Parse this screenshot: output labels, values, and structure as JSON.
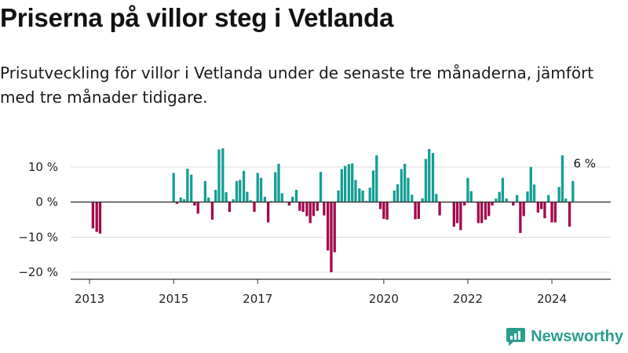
{
  "title": "Priserna på villor steg i Vetlanda",
  "subtitle": "Prisutveckling för villor i Vetlanda under de senaste tre månaderna, jämfört med tre månader tidigare.",
  "brand": {
    "name": "Newsworthy",
    "color": "#2a9d8f",
    "icon": "newsworthy-logo-icon"
  },
  "colors": {
    "positive": "#159e93",
    "negative": "#a3074d",
    "zero_line": "#333333",
    "grid": "#dddddd"
  },
  "chart_data": {
    "type": "bar",
    "unit": "%",
    "ylim": [
      -22,
      16
    ],
    "yticks": [
      10,
      0,
      -10,
      -20
    ],
    "ytick_labels": [
      "10 %",
      "0 %",
      "−10 %",
      "−20 %"
    ],
    "xlim": [
      2012.55,
      2025.4
    ],
    "xticks": [
      2013,
      2015,
      2017,
      2020,
      2022,
      2024
    ],
    "xtick_labels": [
      "2013",
      "2015",
      "2017",
      "2020",
      "2022",
      "2024"
    ],
    "grid": true,
    "annotation": {
      "text": "6 %",
      "x": 2024.55,
      "y": 6
    },
    "x": [
      2013.08,
      2013.17,
      2013.25,
      2015.0,
      2015.08,
      2015.17,
      2015.25,
      2015.33,
      2015.42,
      2015.5,
      2015.58,
      2015.67,
      2015.75,
      2015.83,
      2015.92,
      2016.0,
      2016.08,
      2016.17,
      2016.25,
      2016.33,
      2016.42,
      2016.5,
      2016.58,
      2016.67,
      2016.75,
      2016.83,
      2016.92,
      2017.0,
      2017.08,
      2017.17,
      2017.25,
      2017.33,
      2017.42,
      2017.5,
      2017.58,
      2017.67,
      2017.75,
      2017.83,
      2017.92,
      2018.0,
      2018.08,
      2018.17,
      2018.25,
      2018.33,
      2018.42,
      2018.5,
      2018.58,
      2018.67,
      2018.75,
      2018.83,
      2018.92,
      2019.0,
      2019.08,
      2019.17,
      2019.25,
      2019.33,
      2019.42,
      2019.5,
      2019.58,
      2019.67,
      2019.75,
      2019.83,
      2019.92,
      2020.0,
      2020.08,
      2020.17,
      2020.25,
      2020.33,
      2020.42,
      2020.5,
      2020.58,
      2020.67,
      2020.75,
      2020.83,
      2020.92,
      2021.0,
      2021.08,
      2021.17,
      2021.25,
      2021.33,
      2021.42,
      2021.5,
      2021.58,
      2021.67,
      2021.75,
      2021.83,
      2021.92,
      2022.0,
      2022.08,
      2022.17,
      2022.25,
      2022.33,
      2022.42,
      2022.5,
      2022.58,
      2022.67,
      2022.75,
      2022.83,
      2022.92,
      2023.0,
      2023.08,
      2023.17,
      2023.25,
      2023.33,
      2023.42,
      2023.5,
      2023.58,
      2023.67,
      2023.75,
      2023.83,
      2023.92,
      2024.0,
      2024.08,
      2024.17,
      2024.25,
      2024.33,
      2024.42,
      2024.5
    ],
    "values": [
      -7.5,
      -8.5,
      -9,
      8.3,
      -0.5,
      1.3,
      0.8,
      9.5,
      7.8,
      -1,
      -3.3,
      0,
      6,
      1.3,
      -5,
      3.5,
      15,
      15.3,
      2.8,
      -2.8,
      0.8,
      6,
      6.3,
      8.9,
      2.9,
      0.5,
      -2.8,
      8.3,
      6.9,
      1.5,
      -5.8,
      0.3,
      8.5,
      10.9,
      2.5,
      0,
      -1,
      1.5,
      3.5,
      -2.5,
      -2.8,
      -4,
      -6,
      -4,
      -2.5,
      8.6,
      -3.8,
      -13.8,
      -20,
      -14.3,
      3.3,
      9.4,
      10.3,
      10.8,
      11,
      6.3,
      3.9,
      3.3,
      0.3,
      4.1,
      9,
      13.3,
      -2,
      -4.8,
      -5,
      0,
      3.3,
      5.1,
      9.4,
      10.9,
      6.9,
      2.1,
      -4.9,
      -4.8,
      1.1,
      12.3,
      15.1,
      14,
      2.3,
      -3.8,
      0,
      0,
      0,
      -7,
      -6,
      -8,
      -1,
      6.9,
      3.1,
      0,
      -6,
      -6,
      -5,
      -4,
      -1,
      1,
      2.9,
      6.9,
      1,
      0,
      -1,
      2,
      -8.8,
      -4,
      3,
      10,
      5,
      -3,
      -2,
      -4.6,
      2,
      -5.8,
      -5.8,
      4.3,
      13.3,
      1,
      -7,
      6
    ]
  }
}
